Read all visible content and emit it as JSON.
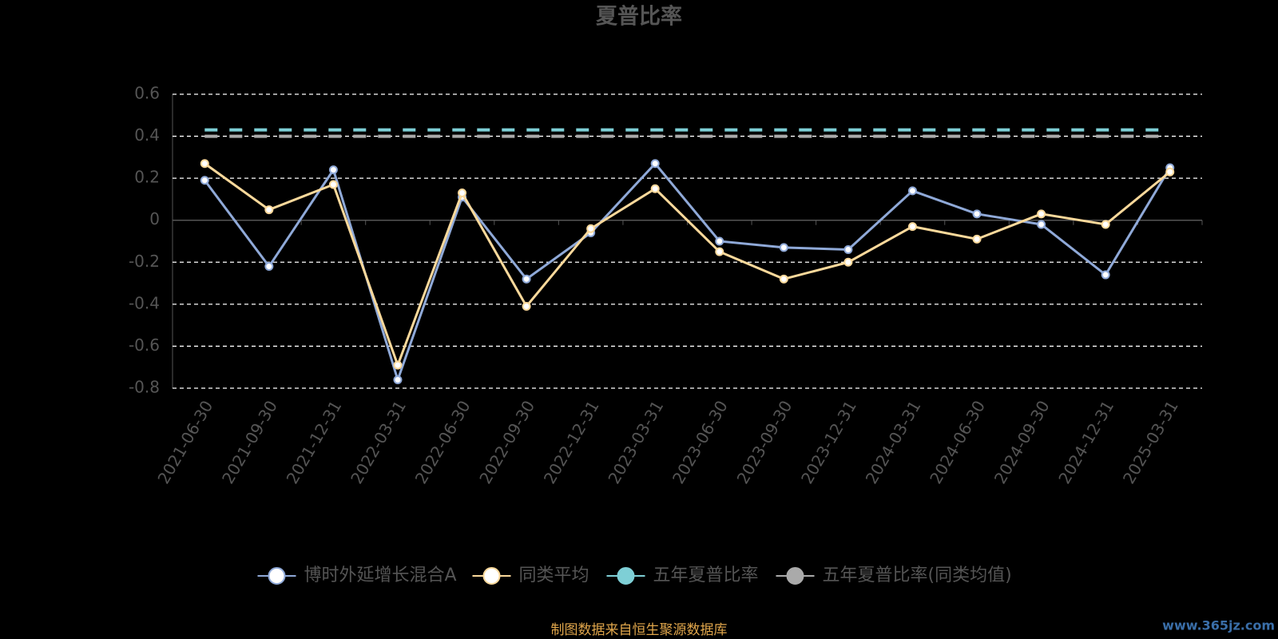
{
  "chart_data": {
    "type": "line",
    "title": "夏普比率",
    "categories": [
      "2021-06-30",
      "2021-09-30",
      "2021-12-31",
      "2022-03-31",
      "2022-06-30",
      "2022-09-30",
      "2022-12-31",
      "2023-03-31",
      "2023-06-30",
      "2023-09-30",
      "2023-12-31",
      "2024-03-31",
      "2024-06-30",
      "2024-09-30",
      "2024-12-31",
      "2025-03-31"
    ],
    "series": [
      {
        "name": "博时外延增长混合A",
        "color": "#8fa9d8",
        "dashed": false,
        "values": [
          0.19,
          -0.22,
          0.24,
          -0.76,
          0.11,
          -0.28,
          -0.06,
          0.27,
          -0.1,
          -0.13,
          -0.14,
          0.14,
          0.03,
          -0.02,
          -0.26,
          0.25
        ]
      },
      {
        "name": "同类平均",
        "color": "#fbd99b",
        "dashed": false,
        "values": [
          0.27,
          0.05,
          0.17,
          -0.69,
          0.13,
          -0.41,
          -0.04,
          0.15,
          -0.15,
          -0.28,
          -0.2,
          -0.03,
          -0.09,
          0.03,
          -0.02,
          0.23
        ]
      },
      {
        "name": "五年夏普比率",
        "color": "#7ecfd6",
        "dashed": true,
        "values": [
          0.43,
          0.43,
          0.43,
          0.43,
          0.43,
          0.43,
          0.43,
          0.43,
          0.43,
          0.43,
          0.43,
          0.43,
          0.43,
          0.43,
          0.43,
          0.43
        ]
      },
      {
        "name": "五年夏普比率(同类均值)",
        "color": "#aaaaaa",
        "dashed": true,
        "values": [
          0.4,
          0.4,
          0.4,
          0.4,
          0.4,
          0.4,
          0.4,
          0.4,
          0.4,
          0.4,
          0.4,
          0.4,
          0.4,
          0.4,
          0.4,
          0.4
        ]
      }
    ],
    "ylim": [
      -0.8,
      0.6
    ],
    "yticks": [
      -0.8,
      -0.6,
      -0.4,
      -0.2,
      0,
      0.2,
      0.4,
      0.6
    ],
    "grid": true,
    "legend": "bottom",
    "source": "制图数据来自恒生聚源数据库",
    "watermark": "www.365jz.com"
  }
}
